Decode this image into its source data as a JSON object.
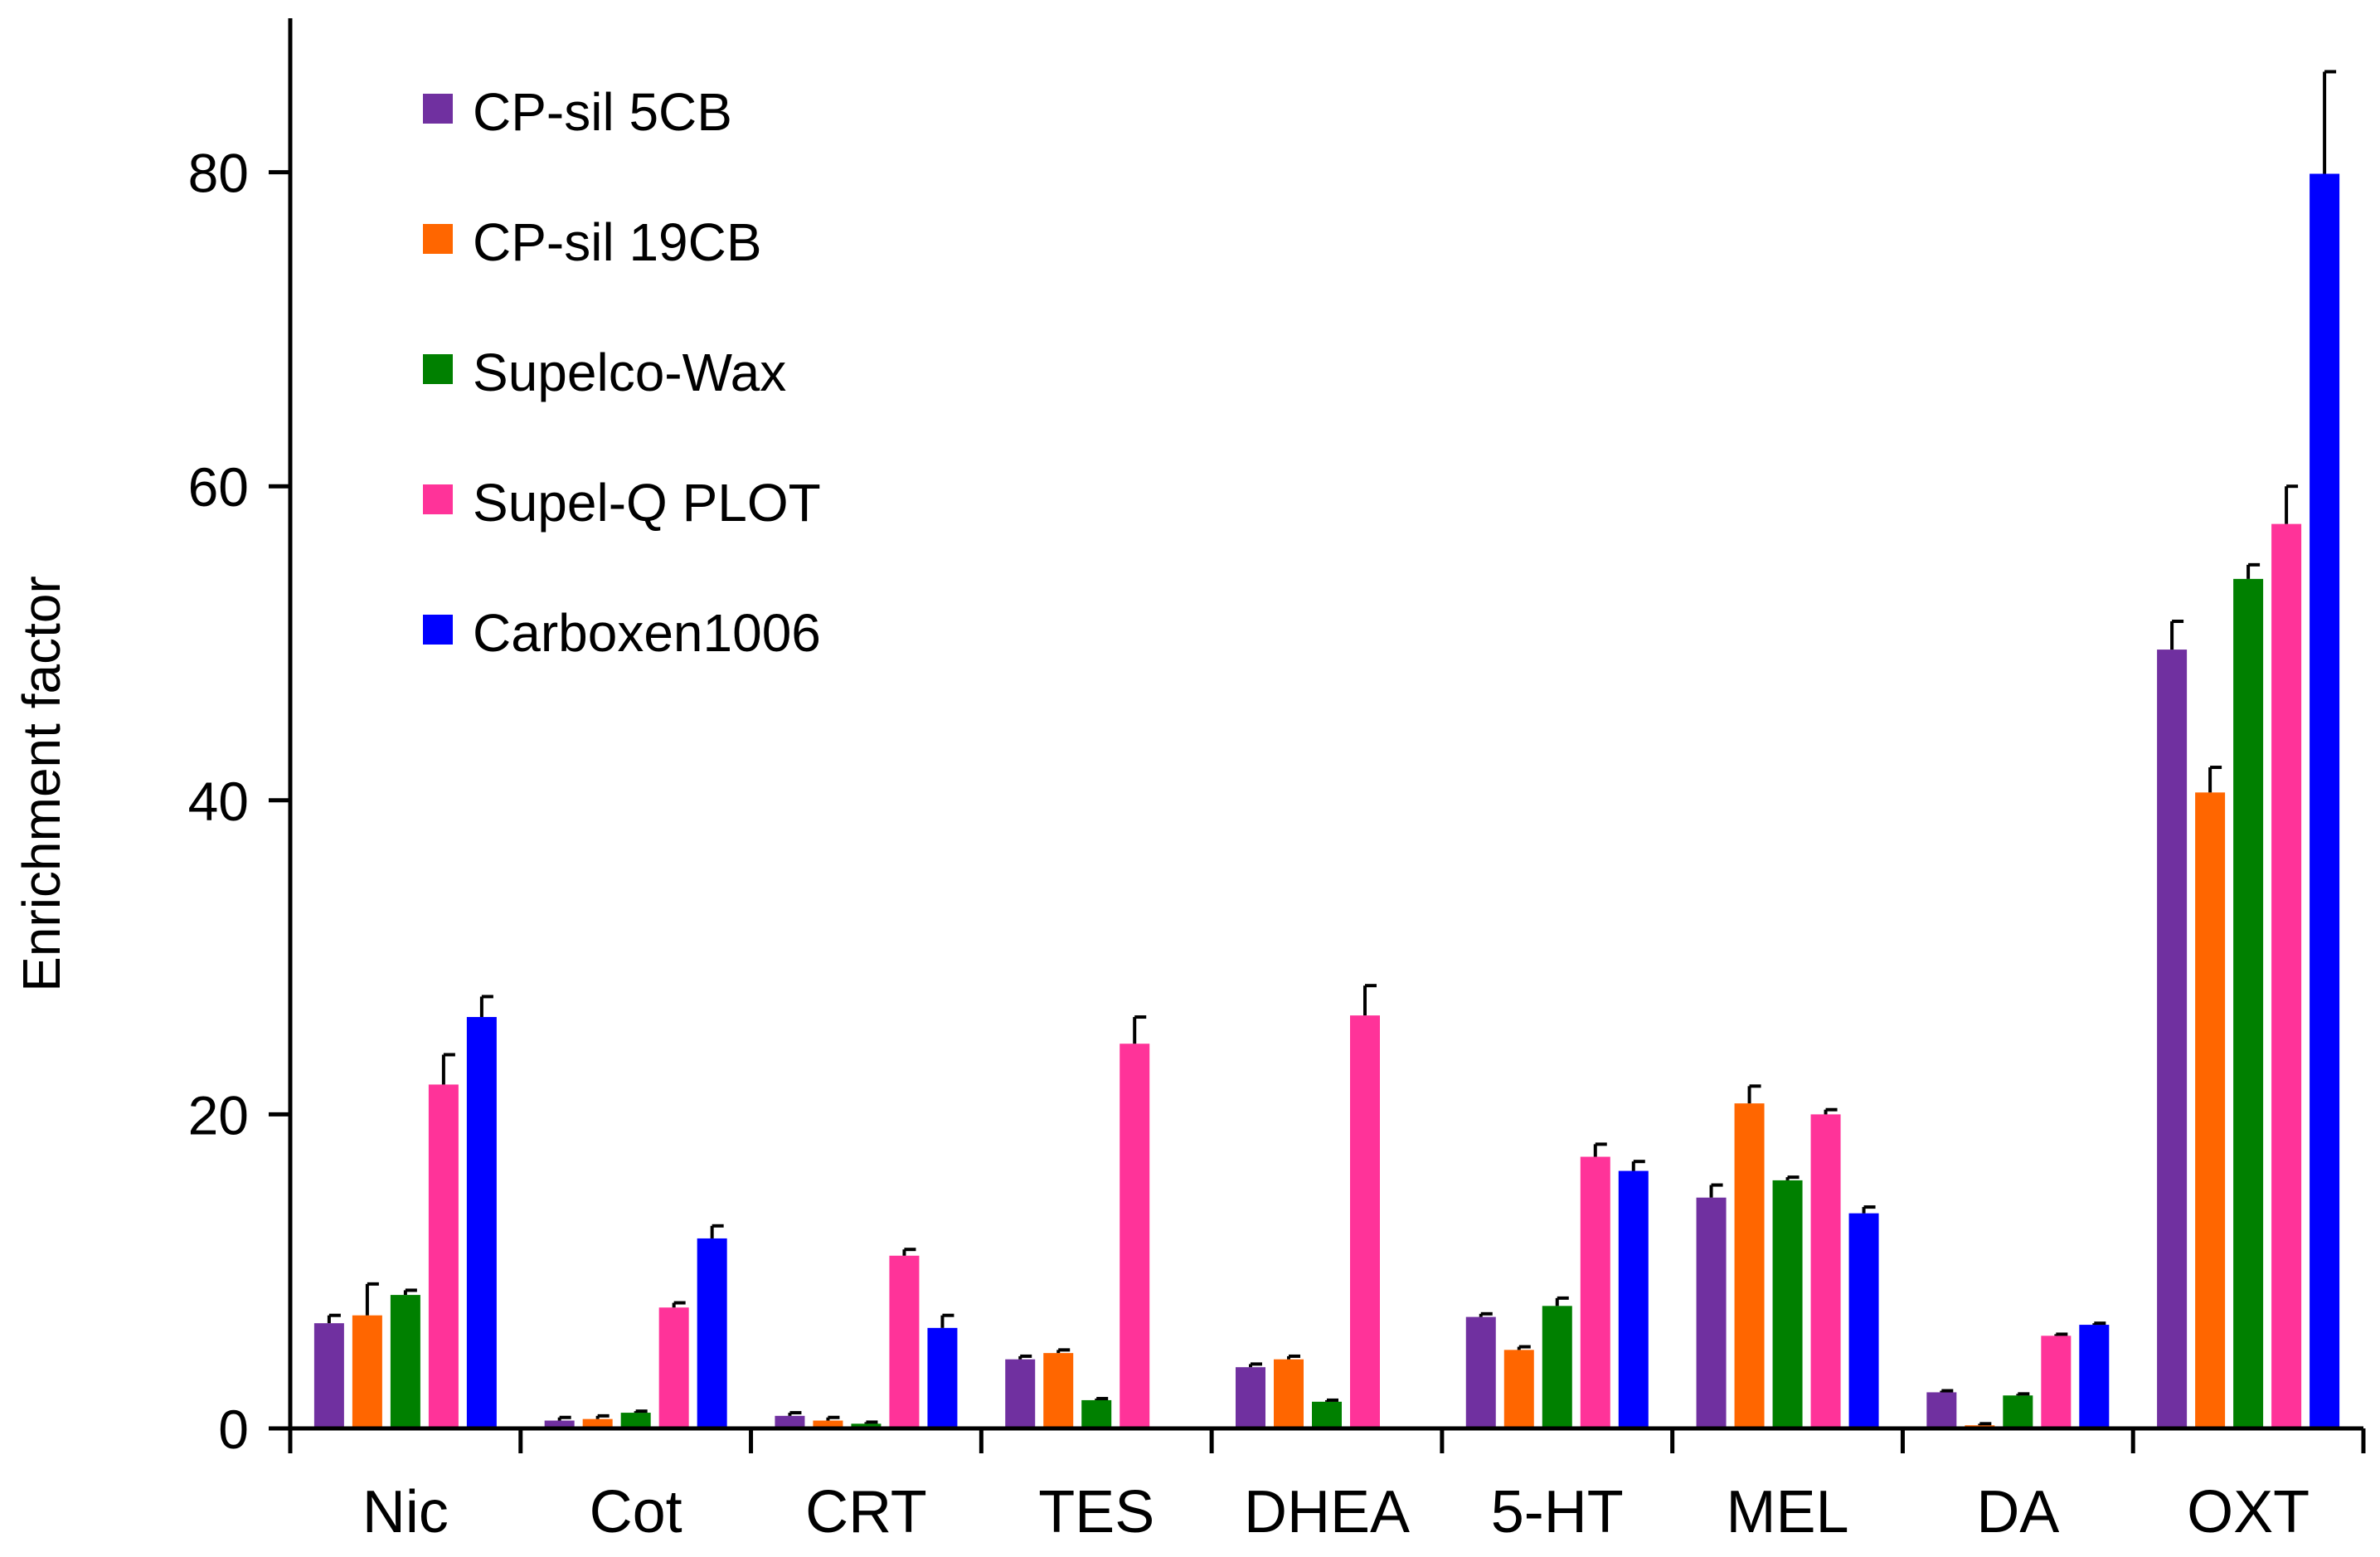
{
  "chart_data": {
    "type": "bar",
    "title": "",
    "xlabel": "",
    "ylabel": "Enrichment factor",
    "ylim": [
      0,
      88
    ],
    "yticks": [
      0,
      20,
      40,
      60,
      80
    ],
    "grid": false,
    "legend_position": "top-left",
    "categories": [
      "Nic",
      "Cot",
      "CRT",
      "TES",
      "DHEA",
      "5-HT",
      "MEL",
      "DA",
      "OXT"
    ],
    "series": [
      {
        "name": "CP-sil 5CB",
        "color": "#7030A0",
        "values": [
          6.7,
          0.5,
          0.8,
          4.4,
          3.9,
          7.1,
          14.7,
          2.3,
          49.6
        ],
        "errors": [
          0.5,
          0.2,
          0.2,
          0.2,
          0.2,
          0.2,
          0.8,
          0.1,
          1.8
        ]
      },
      {
        "name": "CP-sil 19CB",
        "color": "#FF6600",
        "values": [
          7.2,
          0.6,
          0.5,
          4.8,
          4.4,
          5.0,
          20.7,
          0.2,
          40.5
        ],
        "errors": [
          2.0,
          0.2,
          0.2,
          0.2,
          0.2,
          0.2,
          1.1,
          0.1,
          1.6
        ]
      },
      {
        "name": "Supelco-Wax",
        "color": "#008000",
        "values": [
          8.5,
          1.0,
          0.3,
          1.8,
          1.7,
          7.8,
          15.8,
          2.1,
          54.1
        ],
        "errors": [
          0.3,
          0.1,
          0.1,
          0.1,
          0.1,
          0.5,
          0.2,
          0.1,
          0.9
        ]
      },
      {
        "name": "Supel-Q PLOT",
        "color": "#FF3399",
        "values": [
          21.9,
          7.7,
          11.0,
          24.5,
          26.3,
          17.3,
          20.0,
          5.9,
          57.6
        ],
        "errors": [
          1.9,
          0.3,
          0.4,
          1.7,
          1.9,
          0.8,
          0.3,
          0.1,
          2.4
        ]
      },
      {
        "name": "Carboxen1006",
        "color": "#0000FF",
        "values": [
          26.2,
          12.1,
          6.4,
          0.1,
          0.1,
          16.4,
          13.7,
          6.6,
          79.9
        ],
        "errors": [
          1.3,
          0.8,
          0.8,
          0.0,
          0.0,
          0.6,
          0.4,
          0.1,
          6.5
        ]
      }
    ]
  }
}
